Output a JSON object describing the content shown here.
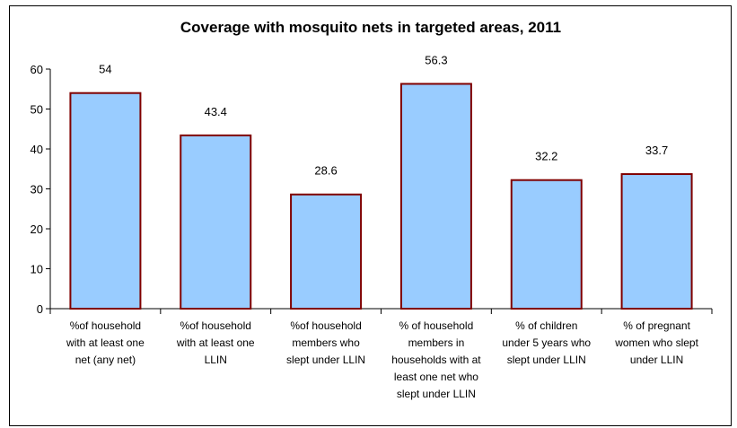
{
  "chart_data": {
    "type": "bar",
    "title": "Coverage with mosquito nets in targeted areas, 2011",
    "xlabel": "",
    "ylabel": "",
    "ylim": [
      0,
      60
    ],
    "yticks": [
      0,
      10,
      20,
      30,
      40,
      50,
      60
    ],
    "grid": false,
    "categories": [
      [
        "%of household",
        "with at least one",
        "net (any net)"
      ],
      [
        "%of household",
        "with at least one",
        "LLIN"
      ],
      [
        "%of household",
        "members who",
        "slept under LLIN"
      ],
      [
        "% of household",
        "members in",
        "households with at",
        "least one net who",
        "slept under LLIN"
      ],
      [
        "% of children",
        "under 5 years who",
        "slept under LLIN"
      ],
      [
        "% of pregnant",
        "women who slept",
        "under LLIN"
      ]
    ],
    "series": [
      {
        "values": [
          54,
          43.4,
          28.6,
          56.3,
          32.2,
          33.7
        ],
        "color": "#99CCFF",
        "edge": "#800000"
      }
    ],
    "data_labels": [
      "54",
      "43.4",
      "28.6",
      "56.3",
      "32.2",
      "33.7"
    ]
  }
}
